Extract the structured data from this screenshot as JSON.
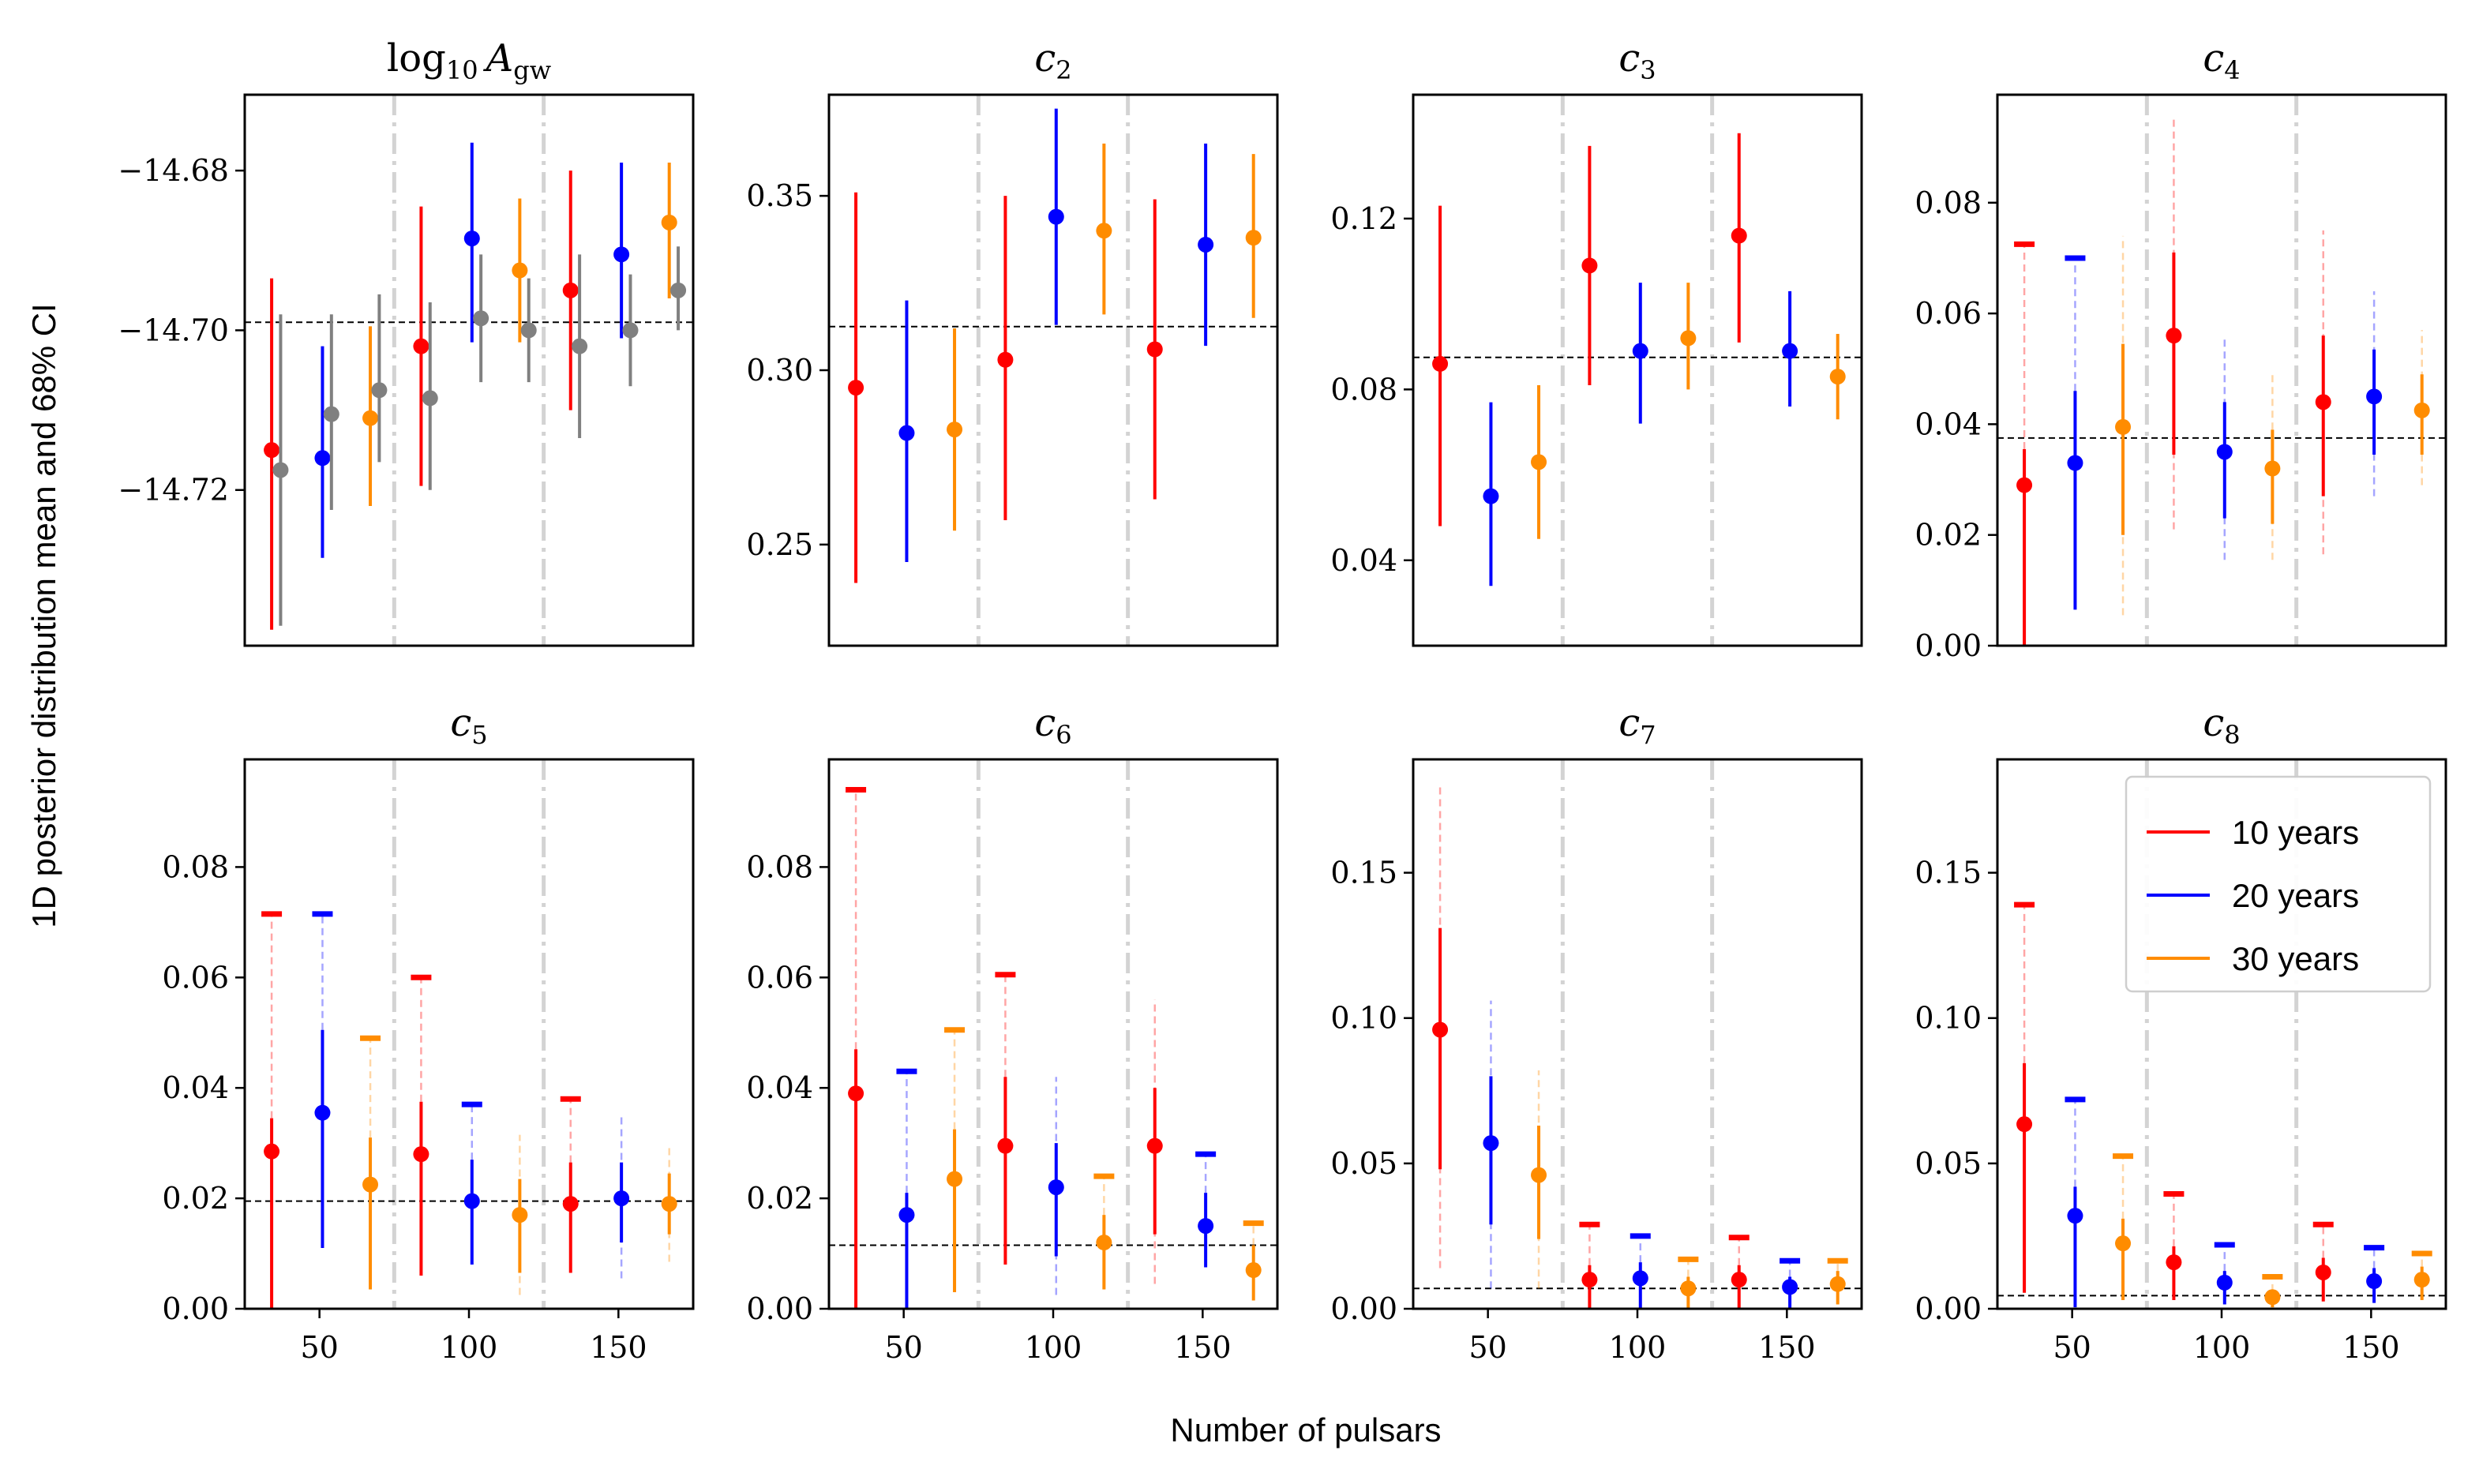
{
  "figure": {
    "xlabel": "Number of pulsars",
    "ylabel": "1D posterior distribution mean and 68% CI"
  },
  "colors": {
    "10 years": "#ff0000",
    "20 years": "#0000ff",
    "30 years": "#ff8c00",
    "gray": "#808080",
    "separator": "#d3d3d3"
  },
  "legend": {
    "entries": [
      "10 years",
      "20 years",
      "30 years"
    ],
    "location": "upper right of c8 panel"
  },
  "chart_data": [
    {
      "type": "scatter",
      "panel": "log10_Agw",
      "title_main": "log",
      "title_sub": "10",
      "title_tail": "A",
      "title_tail_sub": "gw",
      "xlim": [
        25,
        175
      ],
      "ylim": [
        -14.7395,
        -14.6705
      ],
      "yticks": [
        -14.72,
        -14.7,
        -14.68
      ],
      "ytick_labels": [
        "−14.72",
        "−14.70",
        "−14.68"
      ],
      "xticks": [],
      "xtick_labels": [],
      "reference": -14.699,
      "separators": [
        75,
        125
      ],
      "points": [
        {
          "x": 34,
          "y": -14.715,
          "lo": -14.7375,
          "hi": -14.6935,
          "series": "10 years"
        },
        {
          "x": 37,
          "y": -14.7175,
          "lo": -14.737,
          "hi": -14.698,
          "series": "gray"
        },
        {
          "x": 51,
          "y": -14.716,
          "lo": -14.7285,
          "hi": -14.702,
          "series": "20 years"
        },
        {
          "x": 54,
          "y": -14.7105,
          "lo": -14.7225,
          "hi": -14.698,
          "series": "gray"
        },
        {
          "x": 67,
          "y": -14.711,
          "lo": -14.722,
          "hi": -14.6995,
          "series": "30 years"
        },
        {
          "x": 70,
          "y": -14.7075,
          "lo": -14.7165,
          "hi": -14.6955,
          "series": "gray"
        },
        {
          "x": 84,
          "y": -14.702,
          "lo": -14.7195,
          "hi": -14.6845,
          "series": "10 years"
        },
        {
          "x": 87,
          "y": -14.7085,
          "lo": -14.72,
          "hi": -14.6965,
          "series": "gray"
        },
        {
          "x": 101,
          "y": -14.6885,
          "lo": -14.7015,
          "hi": -14.6765,
          "series": "20 years"
        },
        {
          "x": 104,
          "y": -14.6985,
          "lo": -14.7065,
          "hi": -14.6905,
          "series": "gray"
        },
        {
          "x": 117,
          "y": -14.6925,
          "lo": -14.7015,
          "hi": -14.6835,
          "series": "30 years"
        },
        {
          "x": 120,
          "y": -14.7,
          "lo": -14.7065,
          "hi": -14.6935,
          "series": "gray"
        },
        {
          "x": 134,
          "y": -14.695,
          "lo": -14.71,
          "hi": -14.68,
          "series": "10 years"
        },
        {
          "x": 137,
          "y": -14.702,
          "lo": -14.7135,
          "hi": -14.6905,
          "series": "gray"
        },
        {
          "x": 151,
          "y": -14.6905,
          "lo": -14.701,
          "hi": -14.679,
          "series": "20 years"
        },
        {
          "x": 154,
          "y": -14.7,
          "lo": -14.707,
          "hi": -14.693,
          "series": "gray"
        },
        {
          "x": 167,
          "y": -14.6865,
          "lo": -14.696,
          "hi": -14.679,
          "series": "30 years"
        },
        {
          "x": 170,
          "y": -14.695,
          "lo": -14.7,
          "hi": -14.6895,
          "series": "gray"
        }
      ]
    },
    {
      "type": "scatter",
      "panel": "c2",
      "title_main": "c",
      "title_sub": "2",
      "xlim": [
        25,
        175
      ],
      "ylim": [
        0.221,
        0.379
      ],
      "yticks": [
        0.25,
        0.3,
        0.35
      ],
      "ytick_labels": [
        "0.25",
        "0.30",
        "0.35"
      ],
      "xticks": [],
      "xtick_labels": [],
      "reference": 0.3125,
      "separators": [
        75,
        125
      ],
      "points": [
        {
          "x": 34,
          "y": 0.295,
          "lo": 0.239,
          "hi": 0.351,
          "series": "10 years"
        },
        {
          "x": 51,
          "y": 0.282,
          "lo": 0.245,
          "hi": 0.32,
          "series": "20 years"
        },
        {
          "x": 67,
          "y": 0.283,
          "lo": 0.254,
          "hi": 0.312,
          "series": "30 years"
        },
        {
          "x": 84,
          "y": 0.303,
          "lo": 0.257,
          "hi": 0.35,
          "series": "10 years"
        },
        {
          "x": 101,
          "y": 0.344,
          "lo": 0.313,
          "hi": 0.375,
          "series": "20 years"
        },
        {
          "x": 117,
          "y": 0.34,
          "lo": 0.316,
          "hi": 0.365,
          "series": "30 years"
        },
        {
          "x": 134,
          "y": 0.306,
          "lo": 0.263,
          "hi": 0.349,
          "series": "10 years"
        },
        {
          "x": 151,
          "y": 0.336,
          "lo": 0.307,
          "hi": 0.365,
          "series": "20 years"
        },
        {
          "x": 167,
          "y": 0.338,
          "lo": 0.315,
          "hi": 0.362,
          "series": "30 years"
        }
      ]
    },
    {
      "type": "scatter",
      "panel": "c3",
      "title_main": "c",
      "title_sub": "3",
      "xlim": [
        25,
        175
      ],
      "ylim": [
        0.02,
        0.149
      ],
      "yticks": [
        0.04,
        0.08,
        0.12
      ],
      "ytick_labels": [
        "0.04",
        "0.08",
        "0.12"
      ],
      "xticks": [],
      "xtick_labels": [],
      "reference": 0.0875,
      "separators": [
        75,
        125
      ],
      "points": [
        {
          "x": 34,
          "y": 0.086,
          "lo": 0.048,
          "hi": 0.123,
          "series": "10 years"
        },
        {
          "x": 51,
          "y": 0.055,
          "lo": 0.034,
          "hi": 0.077,
          "series": "20 years"
        },
        {
          "x": 67,
          "y": 0.063,
          "lo": 0.045,
          "hi": 0.081,
          "series": "30 years"
        },
        {
          "x": 84,
          "y": 0.109,
          "lo": 0.081,
          "hi": 0.137,
          "series": "10 years"
        },
        {
          "x": 101,
          "y": 0.089,
          "lo": 0.072,
          "hi": 0.105,
          "series": "20 years"
        },
        {
          "x": 117,
          "y": 0.092,
          "lo": 0.08,
          "hi": 0.105,
          "series": "30 years"
        },
        {
          "x": 134,
          "y": 0.116,
          "lo": 0.091,
          "hi": 0.14,
          "series": "10 years"
        },
        {
          "x": 151,
          "y": 0.089,
          "lo": 0.076,
          "hi": 0.103,
          "series": "20 years"
        },
        {
          "x": 167,
          "y": 0.083,
          "lo": 0.073,
          "hi": 0.093,
          "series": "30 years"
        }
      ]
    },
    {
      "type": "scatter",
      "panel": "c4",
      "title_main": "c",
      "title_sub": "4",
      "xlim": [
        25,
        175
      ],
      "ylim": [
        0.0,
        0.0995
      ],
      "yticks": [
        0.0,
        0.02,
        0.04,
        0.06,
        0.08
      ],
      "ytick_labels": [
        "0.00",
        "0.02",
        "0.04",
        "0.06",
        "0.08"
      ],
      "xticks": [],
      "xtick_labels": [],
      "reference": 0.0375,
      "separators": [
        75,
        125
      ],
      "points": [
        {
          "x": 34,
          "y": 0.029,
          "lo": 0.0,
          "hi": 0.0355,
          "upper": 0.0725,
          "series": "10 years"
        },
        {
          "x": 51,
          "y": 0.033,
          "lo": 0.0065,
          "hi": 0.046,
          "upper": 0.07,
          "series": "20 years"
        },
        {
          "x": 67,
          "y": 0.0395,
          "lo": 0.02,
          "hi": 0.0545,
          "dash_lo": 0.0055,
          "dash_hi": 0.074,
          "series": "30 years"
        },
        {
          "x": 84,
          "y": 0.056,
          "lo": 0.0345,
          "hi": 0.071,
          "dash_lo": 0.021,
          "dash_hi": 0.095,
          "series": "10 years"
        },
        {
          "x": 101,
          "y": 0.035,
          "lo": 0.023,
          "hi": 0.044,
          "dash_lo": 0.0155,
          "dash_hi": 0.056,
          "series": "20 years"
        },
        {
          "x": 117,
          "y": 0.032,
          "lo": 0.022,
          "hi": 0.039,
          "dash_lo": 0.0155,
          "dash_hi": 0.049,
          "series": "30 years"
        },
        {
          "x": 134,
          "y": 0.044,
          "lo": 0.027,
          "hi": 0.056,
          "dash_lo": 0.0165,
          "dash_hi": 0.075,
          "series": "10 years"
        },
        {
          "x": 151,
          "y": 0.045,
          "lo": 0.0345,
          "hi": 0.0535,
          "dash_lo": 0.027,
          "dash_hi": 0.064,
          "series": "20 years"
        },
        {
          "x": 167,
          "y": 0.0425,
          "lo": 0.0345,
          "hi": 0.049,
          "dash_lo": 0.029,
          "dash_hi": 0.057,
          "series": "30 years"
        }
      ]
    },
    {
      "type": "scatter",
      "panel": "c5",
      "title_main": "c",
      "title_sub": "5",
      "xlim": [
        25,
        175
      ],
      "ylim": [
        0.0,
        0.0995
      ],
      "yticks": [
        0.0,
        0.02,
        0.04,
        0.06,
        0.08
      ],
      "ytick_labels": [
        "0.00",
        "0.02",
        "0.04",
        "0.06",
        "0.08"
      ],
      "xticks": [
        50,
        100,
        150
      ],
      "xtick_labels": [
        "50",
        "100",
        "150"
      ],
      "reference": 0.0195,
      "separators": [
        75,
        125
      ],
      "points": [
        {
          "x": 34,
          "y": 0.0285,
          "lo": 0.0,
          "hi": 0.0345,
          "upper": 0.0715,
          "series": "10 years"
        },
        {
          "x": 51,
          "y": 0.0355,
          "lo": 0.011,
          "hi": 0.0505,
          "upper": 0.0715,
          "series": "20 years"
        },
        {
          "x": 67,
          "y": 0.0225,
          "lo": 0.0035,
          "hi": 0.031,
          "upper": 0.049,
          "series": "30 years"
        },
        {
          "x": 84,
          "y": 0.028,
          "lo": 0.006,
          "hi": 0.0375,
          "upper": 0.06,
          "series": "10 years"
        },
        {
          "x": 101,
          "y": 0.0195,
          "lo": 0.008,
          "hi": 0.027,
          "upper": 0.037,
          "series": "20 years"
        },
        {
          "x": 117,
          "y": 0.017,
          "lo": 0.0065,
          "hi": 0.0235,
          "dash_lo": 0.0025,
          "dash_hi": 0.0315,
          "series": "30 years"
        },
        {
          "x": 134,
          "y": 0.019,
          "lo": 0.0065,
          "hi": 0.0265,
          "upper": 0.038,
          "series": "10 years"
        },
        {
          "x": 151,
          "y": 0.02,
          "lo": 0.012,
          "hi": 0.0265,
          "dash_lo": 0.0055,
          "dash_hi": 0.035,
          "series": "20 years"
        },
        {
          "x": 167,
          "y": 0.019,
          "lo": 0.0135,
          "hi": 0.0245,
          "dash_lo": 0.0085,
          "dash_hi": 0.0295,
          "series": "30 years"
        }
      ]
    },
    {
      "type": "scatter",
      "panel": "c6",
      "title_main": "c",
      "title_sub": "6",
      "xlim": [
        25,
        175
      ],
      "ylim": [
        0.0,
        0.0995
      ],
      "yticks": [
        0.0,
        0.02,
        0.04,
        0.06,
        0.08
      ],
      "ytick_labels": [
        "0.00",
        "0.02",
        "0.04",
        "0.06",
        "0.08"
      ],
      "xticks": [
        50,
        100,
        150
      ],
      "xtick_labels": [
        "50",
        "100",
        "150"
      ],
      "reference": 0.0115,
      "separators": [
        75,
        125
      ],
      "points": [
        {
          "x": 34,
          "y": 0.039,
          "lo": 0.0,
          "hi": 0.047,
          "upper": 0.094,
          "series": "10 years"
        },
        {
          "x": 51,
          "y": 0.017,
          "lo": 0.0,
          "hi": 0.021,
          "upper": 0.043,
          "series": "20 years"
        },
        {
          "x": 67,
          "y": 0.0235,
          "lo": 0.003,
          "hi": 0.0325,
          "upper": 0.0505,
          "series": "30 years"
        },
        {
          "x": 84,
          "y": 0.0295,
          "lo": 0.008,
          "hi": 0.042,
          "upper": 0.0605,
          "series": "10 years"
        },
        {
          "x": 101,
          "y": 0.022,
          "lo": 0.0095,
          "hi": 0.03,
          "dash_lo": 0.0025,
          "dash_hi": 0.042,
          "series": "20 years"
        },
        {
          "x": 117,
          "y": 0.012,
          "lo": 0.0035,
          "hi": 0.017,
          "upper": 0.024,
          "series": "30 years"
        },
        {
          "x": 134,
          "y": 0.0295,
          "lo": 0.0135,
          "hi": 0.04,
          "dash_lo": 0.0045,
          "dash_hi": 0.056,
          "series": "10 years"
        },
        {
          "x": 151,
          "y": 0.015,
          "lo": 0.0075,
          "hi": 0.021,
          "upper": 0.028,
          "series": "20 years"
        },
        {
          "x": 167,
          "y": 0.007,
          "lo": 0.0015,
          "hi": 0.0115,
          "upper": 0.0155,
          "series": "30 years"
        }
      ]
    },
    {
      "type": "scatter",
      "panel": "c7",
      "title_main": "c",
      "title_sub": "7",
      "xlim": [
        25,
        175
      ],
      "ylim": [
        0.0,
        0.189
      ],
      "yticks": [
        0.0,
        0.05,
        0.1,
        0.15
      ],
      "ytick_labels": [
        "0.00",
        "0.05",
        "0.10",
        "0.15"
      ],
      "xticks": [
        50,
        100,
        150
      ],
      "xtick_labels": [
        "50",
        "100",
        "150"
      ],
      "reference": 0.007,
      "separators": [
        75,
        125
      ],
      "points": [
        {
          "x": 34,
          "y": 0.096,
          "lo": 0.048,
          "hi": 0.131,
          "dash_lo": 0.014,
          "dash_hi": 0.18,
          "series": "10 years"
        },
        {
          "x": 51,
          "y": 0.057,
          "lo": 0.029,
          "hi": 0.08,
          "dash_lo": 0.007,
          "dash_hi": 0.106,
          "series": "20 years"
        },
        {
          "x": 67,
          "y": 0.046,
          "lo": 0.024,
          "hi": 0.063,
          "dash_lo": 0.007,
          "dash_hi": 0.082,
          "series": "30 years"
        },
        {
          "x": 84,
          "y": 0.01,
          "lo": 0.0,
          "hi": 0.015,
          "upper": 0.029,
          "series": "10 years"
        },
        {
          "x": 101,
          "y": 0.0105,
          "lo": 0.0,
          "hi": 0.016,
          "upper": 0.025,
          "series": "20 years"
        },
        {
          "x": 117,
          "y": 0.007,
          "lo": 0.0,
          "hi": 0.011,
          "upper": 0.017,
          "series": "30 years"
        },
        {
          "x": 134,
          "y": 0.01,
          "lo": 0.0,
          "hi": 0.015,
          "upper": 0.0245,
          "series": "10 years"
        },
        {
          "x": 151,
          "y": 0.0075,
          "lo": 0.0,
          "hi": 0.011,
          "upper": 0.0165,
          "series": "20 years"
        },
        {
          "x": 167,
          "y": 0.0085,
          "lo": 0.0015,
          "hi": 0.013,
          "upper": 0.0165,
          "series": "30 years"
        }
      ]
    },
    {
      "type": "scatter",
      "panel": "c8",
      "title_main": "c",
      "title_sub": "8",
      "xlim": [
        25,
        175
      ],
      "ylim": [
        0.0,
        0.189
      ],
      "yticks": [
        0.0,
        0.05,
        0.1,
        0.15
      ],
      "ytick_labels": [
        "0.00",
        "0.05",
        "0.10",
        "0.15"
      ],
      "xticks": [
        50,
        100,
        150
      ],
      "xtick_labels": [
        "50",
        "100",
        "150"
      ],
      "reference": 0.0045,
      "separators": [
        75,
        125
      ],
      "has_legend": true,
      "points": [
        {
          "x": 34,
          "y": 0.0635,
          "lo": 0.0055,
          "hi": 0.0845,
          "upper": 0.139,
          "series": "10 years"
        },
        {
          "x": 51,
          "y": 0.032,
          "lo": 0.0005,
          "hi": 0.042,
          "upper": 0.072,
          "series": "20 years"
        },
        {
          "x": 67,
          "y": 0.0225,
          "lo": 0.003,
          "hi": 0.031,
          "upper": 0.0525,
          "series": "30 years"
        },
        {
          "x": 84,
          "y": 0.016,
          "lo": 0.003,
          "hi": 0.0215,
          "upper": 0.0395,
          "series": "10 years"
        },
        {
          "x": 101,
          "y": 0.009,
          "lo": 0.0015,
          "hi": 0.013,
          "upper": 0.022,
          "series": "20 years"
        },
        {
          "x": 117,
          "y": 0.004,
          "lo": 0.0005,
          "hi": 0.006,
          "upper": 0.011,
          "series": "30 years"
        },
        {
          "x": 134,
          "y": 0.0125,
          "lo": 0.0025,
          "hi": 0.0175,
          "upper": 0.029,
          "series": "10 years"
        },
        {
          "x": 151,
          "y": 0.0095,
          "lo": 0.002,
          "hi": 0.014,
          "upper": 0.021,
          "series": "20 years"
        },
        {
          "x": 167,
          "y": 0.01,
          "lo": 0.003,
          "hi": 0.0145,
          "upper": 0.019,
          "series": "30 years"
        }
      ]
    }
  ]
}
